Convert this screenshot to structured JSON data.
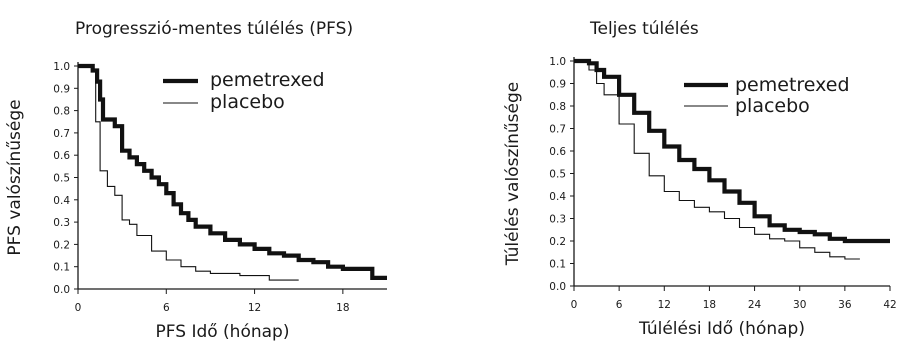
{
  "chart_data": [
    {
      "type": "line",
      "title": "Progresszió-mentes túlélés (PFS)",
      "xlabel": "PFS Idő (hónap)",
      "ylabel": "PFS valószínűsége",
      "xlim": [
        0,
        21
      ],
      "ylim": [
        0,
        1.0
      ],
      "xticks": [
        0,
        6,
        12,
        18
      ],
      "yticks": [
        0.0,
        0.1,
        0.2,
        0.3,
        0.4,
        0.5,
        0.6,
        0.7,
        0.8,
        0.9,
        1.0
      ],
      "grid": false,
      "legend": "top-right",
      "series": [
        {
          "name": "pemetrexed",
          "x": [
            0,
            0.5,
            1,
            1.3,
            1.5,
            1.7,
            2.5,
            3,
            3.5,
            4,
            4.5,
            5,
            5.5,
            6,
            6.5,
            7,
            7.5,
            8,
            9,
            10,
            11,
            12,
            13,
            14,
            15,
            16,
            17,
            18,
            19,
            20,
            21
          ],
          "y": [
            1.0,
            1.0,
            0.98,
            0.93,
            0.85,
            0.76,
            0.73,
            0.62,
            0.59,
            0.56,
            0.53,
            0.5,
            0.47,
            0.43,
            0.38,
            0.34,
            0.31,
            0.28,
            0.25,
            0.22,
            0.2,
            0.18,
            0.16,
            0.15,
            0.13,
            0.12,
            0.1,
            0.09,
            0.09,
            0.05,
            0.05
          ]
        },
        {
          "name": "placebo",
          "x": [
            0,
            0.5,
            1,
            1.2,
            1.5,
            2,
            2.5,
            3,
            3.5,
            4,
            5,
            6,
            7,
            8,
            9,
            10,
            11,
            12,
            13,
            14,
            15
          ],
          "y": [
            1.0,
            1.0,
            0.98,
            0.75,
            0.53,
            0.46,
            0.42,
            0.31,
            0.29,
            0.24,
            0.17,
            0.13,
            0.1,
            0.08,
            0.07,
            0.07,
            0.06,
            0.06,
            0.04,
            0.04,
            0.04
          ]
        }
      ]
    },
    {
      "type": "line",
      "title": "Teljes túlélés",
      "xlabel": "Túlélési Idő (hónap)",
      "ylabel": "Túlélés valószínűsége",
      "xlim": [
        0,
        42
      ],
      "ylim": [
        0,
        1.0
      ],
      "xticks": [
        0,
        6,
        12,
        18,
        24,
        30,
        36,
        42
      ],
      "yticks": [
        0.0,
        0.1,
        0.2,
        0.3,
        0.4,
        0.5,
        0.6,
        0.7,
        0.8,
        0.9,
        1.0
      ],
      "grid": false,
      "legend": "top-right",
      "series": [
        {
          "name": "pemetrexed",
          "x": [
            0,
            2,
            3,
            4,
            6,
            8,
            10,
            12,
            14,
            16,
            18,
            20,
            22,
            24,
            26,
            28,
            30,
            32,
            34,
            36,
            38,
            40,
            42
          ],
          "y": [
            1.0,
            0.99,
            0.96,
            0.93,
            0.85,
            0.77,
            0.69,
            0.62,
            0.56,
            0.52,
            0.47,
            0.42,
            0.37,
            0.31,
            0.27,
            0.25,
            0.24,
            0.23,
            0.21,
            0.2,
            0.2,
            0.2,
            0.2
          ]
        },
        {
          "name": "placebo",
          "x": [
            0,
            2,
            3,
            4,
            6,
            8,
            10,
            12,
            14,
            16,
            18,
            20,
            22,
            24,
            26,
            28,
            30,
            32,
            34,
            36,
            38
          ],
          "y": [
            1.0,
            0.96,
            0.9,
            0.85,
            0.72,
            0.59,
            0.49,
            0.42,
            0.38,
            0.35,
            0.33,
            0.3,
            0.26,
            0.23,
            0.21,
            0.2,
            0.17,
            0.15,
            0.13,
            0.12,
            0.12
          ]
        }
      ]
    }
  ]
}
